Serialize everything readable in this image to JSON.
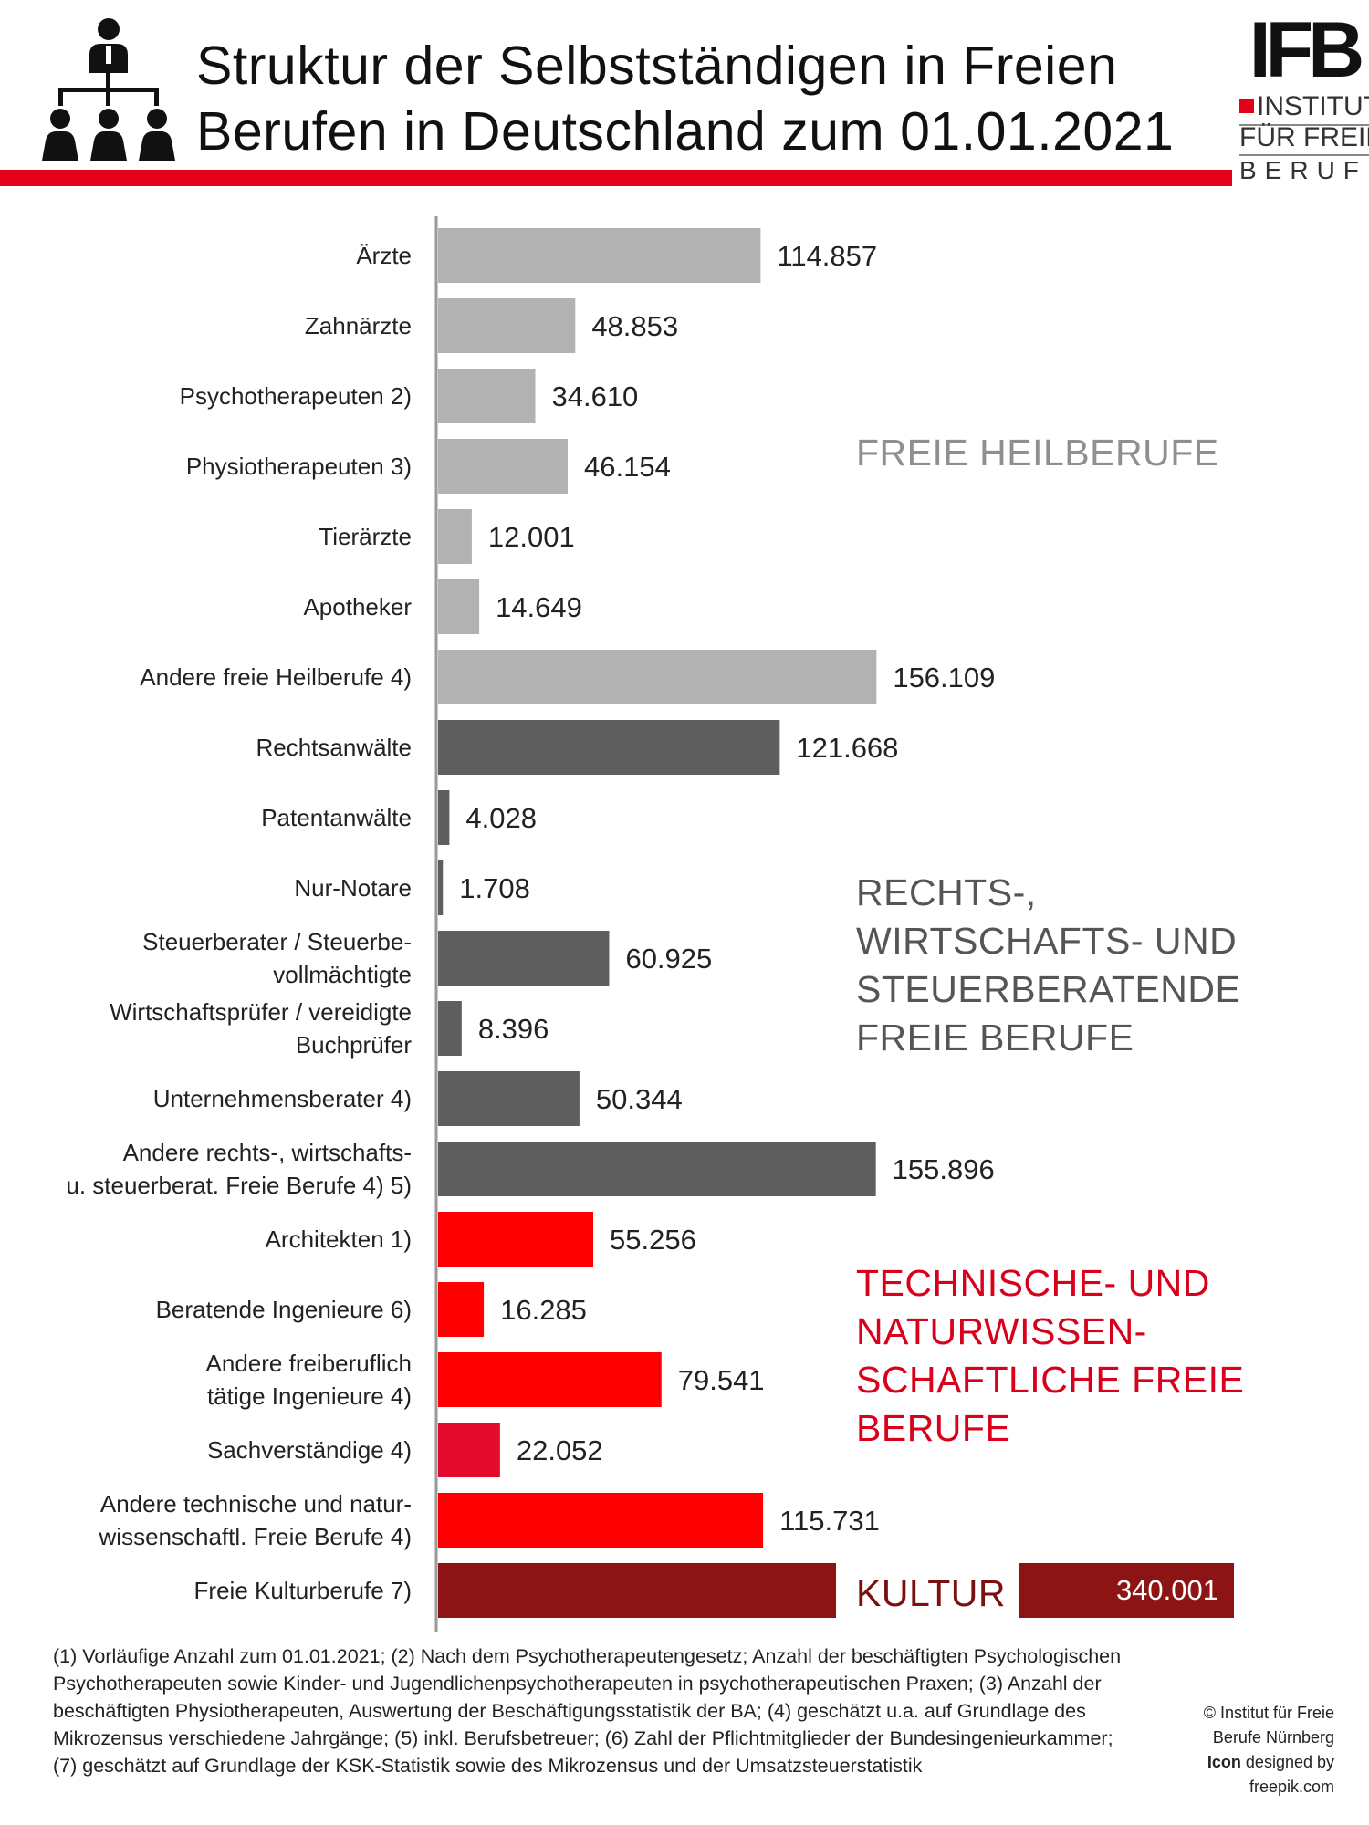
{
  "title_lines": [
    "Struktur der Selbstständigen in Freien",
    "Berufen in Deutschland zum 01.01.2021"
  ],
  "header_icon": "org-chart-people-icon",
  "logo": {
    "mark": "IFB",
    "line1": "INSTITUT",
    "line2": "FÜR FREIE",
    "line3": "BERUFE"
  },
  "colors": {
    "accent": "#e2001a",
    "heil": "#b2b2b2",
    "recht": "#5e5e5e",
    "tech": "#ff0000",
    "tech_alt": "#e30b2b",
    "kultur": "#8c1414",
    "group_heil_text": "#8f8f8f",
    "group_recht_text": "#555555",
    "group_tech_text": "#d8001a",
    "group_kultur_text": "#7a1010"
  },
  "chart_data": {
    "type": "bar",
    "orientation": "horizontal",
    "title": "Struktur der Selbstständigen in Freien Berufen in Deutschland zum 01.01.2021",
    "xlabel": "",
    "ylabel": "",
    "grid": false,
    "legend": "none",
    "categories": [
      [
        "Ärzte"
      ],
      [
        "Zahnärzte"
      ],
      [
        "Psychotherapeuten 2)"
      ],
      [
        "Physiotherapeuten 3)"
      ],
      [
        "Tierärzte"
      ],
      [
        "Apotheker"
      ],
      [
        "Andere freie Heilberufe 4)"
      ],
      [
        "Rechtsanwälte"
      ],
      [
        "Patentanwälte"
      ],
      [
        "Nur-Notare"
      ],
      [
        "Steuerberater / Steuerbe-",
        "vollmächtigte"
      ],
      [
        "Wirtschaftsprüfer / vereidigte",
        "Buchprüfer"
      ],
      [
        "Unternehmensberater 4)"
      ],
      [
        "Andere rechts-, wirtschafts-",
        "u. steuerberat. Freie Berufe 4) 5)"
      ],
      [
        "Architekten 1)"
      ],
      [
        "Beratende Ingenieure 6)"
      ],
      [
        "Andere freiberuflich",
        "tätige Ingenieure 4)"
      ],
      [
        "Sachverständige 4)"
      ],
      [
        "Andere technische und natur-",
        "wissenschaftl. Freie Berufe 4)"
      ],
      [
        "Freie Kulturberufe 7)"
      ]
    ],
    "values": [
      114857,
      48853,
      34610,
      46154,
      12001,
      14649,
      156109,
      121668,
      4028,
      1708,
      60925,
      8396,
      50344,
      155896,
      55256,
      16285,
      79541,
      22052,
      115731,
      340001
    ],
    "value_labels": [
      "114.857",
      "48.853",
      "34.610",
      "46.154",
      "12.001",
      "14.649",
      "156.109",
      "121.668",
      "4.028",
      "1.708",
      "60.925",
      "8.396",
      "50.344",
      "155.896",
      "55.256",
      "16.285",
      "79.541",
      "22.052",
      "115.731",
      "340.001"
    ],
    "groups": [
      "heil",
      "heil",
      "heil",
      "heil",
      "heil",
      "heil",
      "heil",
      "recht",
      "recht",
      "recht",
      "recht",
      "recht",
      "recht",
      "recht",
      "tech",
      "tech",
      "tech",
      "tech_alt",
      "tech",
      "kultur"
    ],
    "xlim": [
      0,
      160000
    ],
    "broken_bar_index": 19,
    "group_labels": [
      {
        "group": "heil",
        "lines": [
          "FREIE HEILBERUFE"
        ]
      },
      {
        "group": "recht",
        "lines": [
          "RECHTS-,",
          "WIRTSCHAFTS-  UND",
          "STEUERBERATENDE",
          "FREIE BERUFE"
        ]
      },
      {
        "group": "tech",
        "lines": [
          "TECHNISCHE- UND",
          "NATURWISSEN-",
          "SCHAFTLICHE FREIE",
          "BERUFE"
        ]
      },
      {
        "group": "kultur",
        "lines": [
          "KULTUR"
        ]
      }
    ]
  },
  "footnote": "(1) Vorläufige Anzahl zum 01.01.2021; (2) Nach dem Psychotherapeutengesetz; Anzahl der  beschäftigten Psychologischen Psychotherapeuten sowie Kinder- und Jugendlichenpsychotherapeuten in psychotherapeutischen Praxen; (3) Anzahl der beschäftigten Physiotherapeuten, Auswertung der Beschäftigungsstatistik der BA; (4) geschätzt u.a. auf Grundlage des Mikrozensus verschiedene Jahrgänge; (5) inkl. Berufsbetreuer; (6) Zahl der Pflichtmitglieder der Bundesingenieurkammer; (7) geschätzt auf Grundlage der KSK-Statistik sowie des Mikrozensus und der Umsatzsteuerstatistik",
  "credit": {
    "line1": "© Institut für Freie",
    "line2": "Berufe Nürnberg",
    "icon_word": "Icon",
    "line3_rest": " designed by",
    "line4": "freepik.com"
  }
}
